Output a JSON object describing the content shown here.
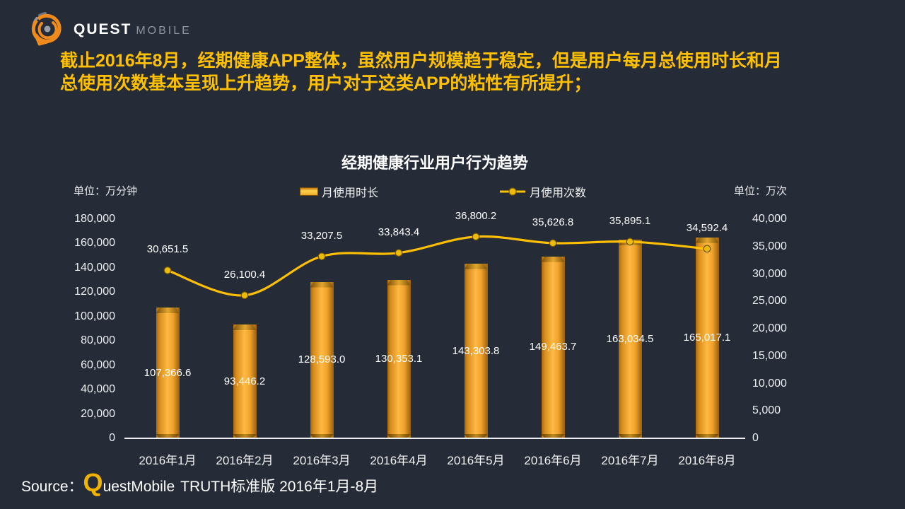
{
  "brand": {
    "primary": "QUEST",
    "secondary": "MOBILE"
  },
  "headline": {
    "line1": "截止2016年8月，经期健康APP整体，虽然用户规模趋于稳定，但是用户每月总使用时长和月",
    "line2": "总使用次数基本呈现上升趋势，用户对于这类APP的粘性有所提升；"
  },
  "chart_data": {
    "type": "bar+line",
    "title": "经期健康行业用户行为趋势",
    "categories": [
      "2016年1月",
      "2016年2月",
      "2016年3月",
      "2016年4月",
      "2016年5月",
      "2016年6月",
      "2016年7月",
      "2016年8月"
    ],
    "series": [
      {
        "name": "月使用时长",
        "type": "bar",
        "axis": "left",
        "values": [
          107366.6,
          93446.2,
          128593.0,
          130353.1,
          143303.8,
          149463.7,
          163034.5,
          165017.1
        ],
        "labels": [
          "107,366.6",
          "93,446.2",
          "128,593.0",
          "130,353.1",
          "143,303.8",
          "149,463.7",
          "163,034.5",
          "165,017.1"
        ]
      },
      {
        "name": "月使用次数",
        "type": "line",
        "axis": "right",
        "values": [
          30651.5,
          26100.4,
          33207.5,
          33843.4,
          36800.2,
          35626.8,
          35895.1,
          34592.4
        ],
        "labels": [
          "30,651.5",
          "26,100.4",
          "33,207.5",
          "33,843.4",
          "36,800.2",
          "35,626.8",
          "35,895.1",
          "34,592.4"
        ]
      }
    ],
    "left_axis": {
      "unit": "单位：万分钟",
      "min": 0,
      "max": 180000,
      "step": 20000,
      "ticks": [
        "0",
        "20,000",
        "40,000",
        "60,000",
        "80,000",
        "100,000",
        "120,000",
        "140,000",
        "160,000",
        "180,000"
      ]
    },
    "right_axis": {
      "unit": "单位：万次",
      "min": 0,
      "max": 40000,
      "step": 5000,
      "ticks": [
        "0",
        "5,000",
        "10,000",
        "15,000",
        "20,000",
        "25,000",
        "30,000",
        "35,000",
        "40,000"
      ]
    },
    "legend_position": "top",
    "grid": false,
    "colors": {
      "bar": "#F5A42A",
      "line": "#FFC000",
      "background": "#252B37",
      "label": "#FFFFFF"
    }
  },
  "footer": {
    "source_label": "Source：",
    "brand_q": "Q",
    "brand_rest": "uestMobile",
    "source_rest": "TRUTH标准版 2016年1月-8月"
  }
}
